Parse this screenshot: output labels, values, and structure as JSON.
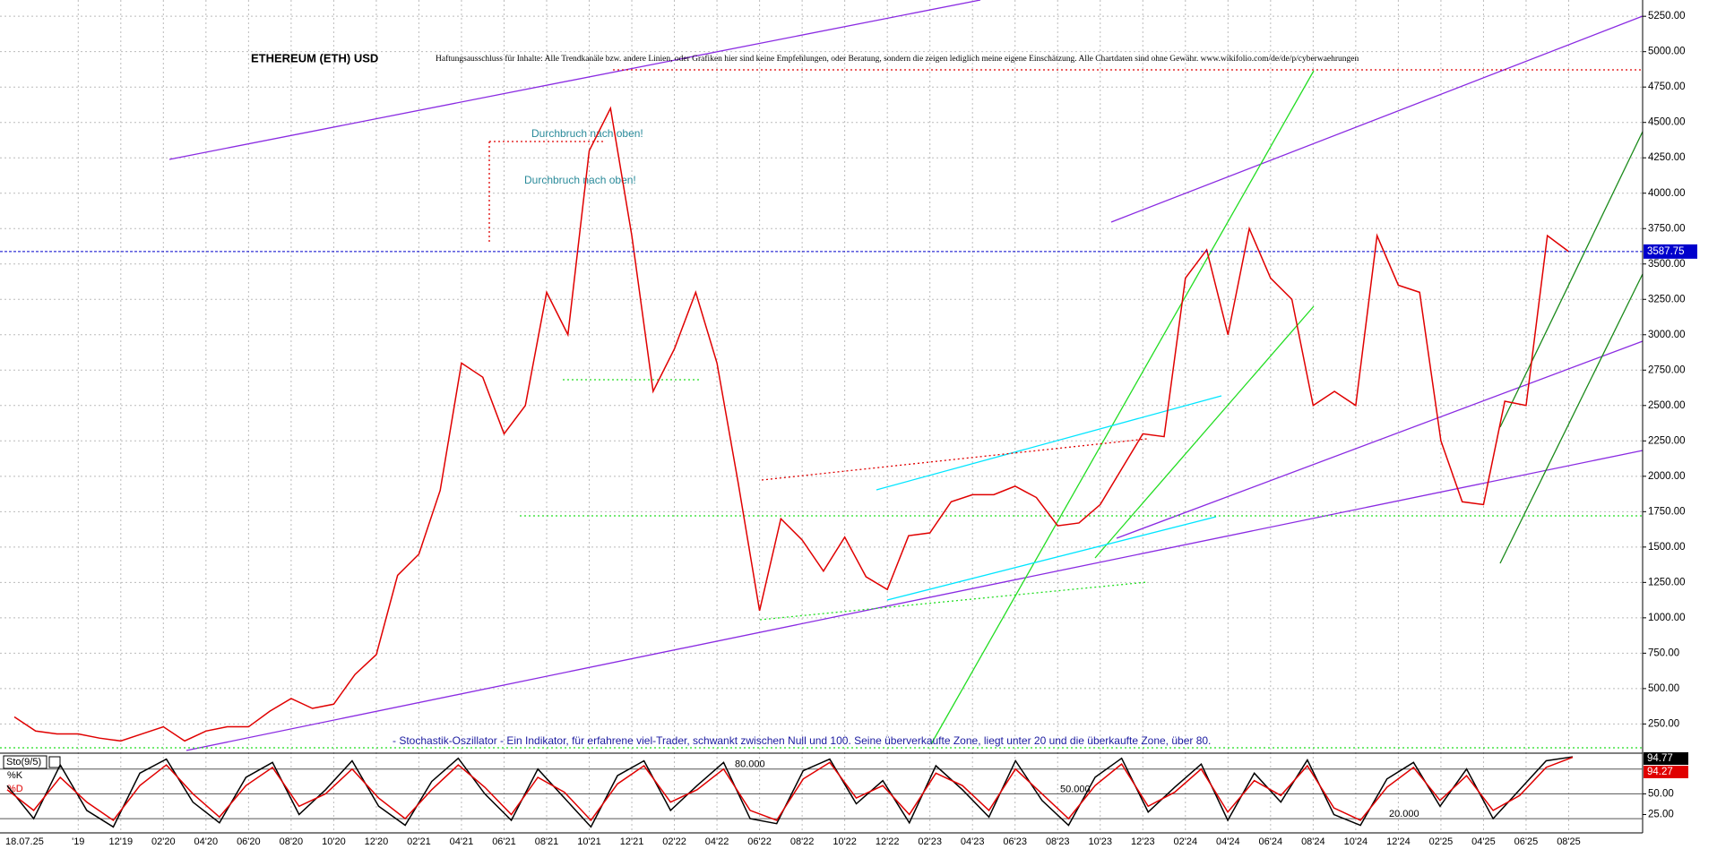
{
  "chart_data": [
    {
      "type": "line",
      "title": "ETHEREUM (ETH) USD",
      "subtitle": "Haftungsausschluss für Inhalte: Alle Trendkanäle bzw. andere Linien, oder Grafiken hier sind keine Empfehlungen, oder Beratung, sondern die zeigen lediglich meine eigene Einschätzung. Alle Chartdaten sind ohne Gewähr. www.wikifolio.com/de/de/p/cyberwaehrungen",
      "annotations": [
        "Durchbruch nach oben!",
        "Durchbruch nach oben!"
      ],
      "date_label": "18.07.25",
      "categories": [
        null,
        null,
        null,
        "'19",
        null,
        "12'19",
        null,
        "02'20",
        null,
        "04'20",
        null,
        "06'20",
        null,
        "08'20",
        null,
        "10'20",
        null,
        "12'20",
        null,
        "02'21",
        null,
        "04'21",
        null,
        "06'21",
        null,
        "08'21",
        null,
        "10'21",
        null,
        "12'21",
        null,
        "02'22",
        null,
        "04'22",
        null,
        "06'22",
        null,
        "08'22",
        null,
        "10'22",
        null,
        "12'22",
        null,
        "02'23",
        null,
        "04'23",
        null,
        "06'23",
        null,
        "08'23",
        null,
        "10'23",
        null,
        "12'23",
        null,
        "02'24",
        null,
        "04'24",
        null,
        "06'24",
        null,
        "08'24",
        null,
        "10'24",
        null,
        "12'24",
        null,
        "02'25",
        null,
        "04'25",
        null,
        "06'25",
        null,
        "08'25"
      ],
      "series": [
        {
          "color": "#e00000",
          "values": [
            300,
            200,
            180,
            180,
            150,
            130,
            180,
            230,
            130,
            200,
            230,
            230,
            340,
            430,
            360,
            390,
            600,
            740,
            1300,
            1450,
            1900,
            2800,
            2700,
            2300,
            2500,
            3300,
            3000,
            4300,
            4600,
            3700,
            2600,
            2900,
            3300,
            2800,
            1950,
            1050,
            1700,
            1550,
            1330,
            1570,
            1290,
            1200,
            1580,
            1600,
            1820,
            1870,
            1870,
            1930,
            1850,
            1650,
            1670,
            1800,
            2050,
            2300,
            2280,
            3400,
            3600,
            3000,
            3750,
            3400,
            3250,
            2500,
            2600,
            2500,
            3700,
            3350,
            3300,
            2250,
            1820,
            1800,
            2530,
            2500,
            3700,
            3587.75
          ]
        }
      ],
      "last_price": 3587.75,
      "ylim": [
        50,
        5365
      ],
      "yticks": [
        {
          "value": 250,
          "label": "250.00"
        },
        {
          "value": 500,
          "label": "500.00"
        },
        {
          "value": 750,
          "label": "750.00"
        },
        {
          "value": 1000,
          "label": "1000.00"
        },
        {
          "value": 1250,
          "label": "1250.00"
        },
        {
          "value": 1500,
          "label": "1500.00"
        },
        {
          "value": 1750,
          "label": "1750.00"
        },
        {
          "value": 2000,
          "label": "2000.00"
        },
        {
          "value": 2250,
          "label": "2250.00"
        },
        {
          "value": 2500,
          "label": "2500.00"
        },
        {
          "value": 2750,
          "label": "2750.00"
        },
        {
          "value": 3000,
          "label": "3000.00"
        },
        {
          "value": 3250,
          "label": "3250.00"
        },
        {
          "value": 3500,
          "label": "3500.00"
        },
        {
          "value": 3750,
          "label": "3750.00"
        },
        {
          "value": 4000,
          "label": "4000.00"
        },
        {
          "value": 4250,
          "label": "4250.00"
        },
        {
          "value": 4500,
          "label": "4500.00"
        },
        {
          "value": 4750,
          "label": "4750.00"
        },
        {
          "value": 5000,
          "label": "5000.00"
        },
        {
          "value": 5250,
          "label": "5250.00"
        }
      ],
      "grid": true
    },
    {
      "type": "line",
      "title": "Sto(9/5)",
      "note": "- Stochastik-Oszillator - Ein Indikator, für erfahrene viel-Trader, schwankt zwischen Null und 100. Seine überverkaufte Zone, liegt unter 20 und die überkaufte Zone, über 80.",
      "series": [
        {
          "name": "%K",
          "color": "#000000",
          "values": [
            60,
            20,
            85,
            30,
            10,
            75,
            92,
            40,
            15,
            70,
            88,
            25,
            55,
            90,
            35,
            12,
            65,
            93,
            50,
            18,
            80,
            45,
            10,
            72,
            90,
            30,
            60,
            88,
            20,
            14,
            78,
            92,
            38,
            66,
            15,
            84,
            55,
            22,
            90,
            42,
            12,
            70,
            93,
            28,
            58,
            86,
            18,
            75,
            40,
            91,
            25,
            12,
            68,
            88,
            35,
            80,
            20,
            55,
            90,
            94.77
          ]
        },
        {
          "name": "%D",
          "color": "#e00000",
          "values": [
            55,
            30,
            70,
            40,
            18,
            60,
            85,
            50,
            22,
            60,
            82,
            35,
            50,
            80,
            45,
            20,
            55,
            85,
            58,
            25,
            70,
            52,
            18,
            62,
            84,
            40,
            55,
            80,
            30,
            18,
            68,
            88,
            45,
            60,
            25,
            75,
            60,
            30,
            80,
            50,
            20,
            60,
            86,
            35,
            52,
            80,
            28,
            66,
            48,
            84,
            33,
            18,
            58,
            82,
            42,
            72,
            30,
            48,
            82,
            94.27
          ]
        }
      ],
      "levels": [
        {
          "value": 80,
          "label": "80.000"
        },
        {
          "value": 50,
          "label": "50.000"
        },
        {
          "value": 20,
          "label": "20.000"
        }
      ],
      "ylim": [
        5,
        97
      ],
      "yticks": [
        {
          "value": 25,
          "label": "25.00"
        },
        {
          "value": 50,
          "label": "50.00"
        }
      ]
    }
  ]
}
